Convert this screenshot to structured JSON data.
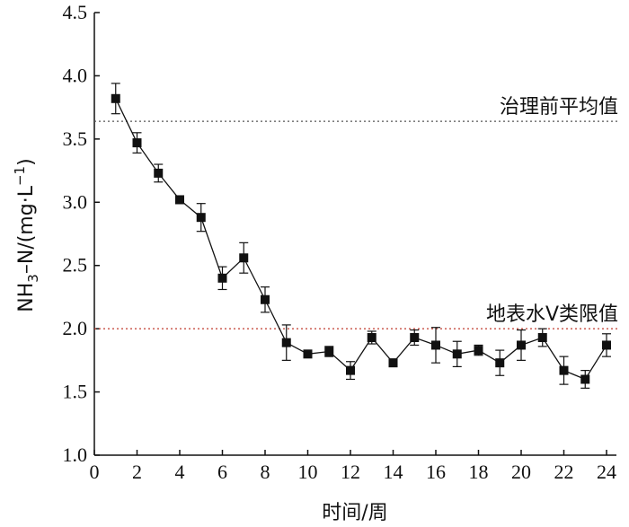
{
  "chart_data": {
    "type": "line",
    "xlabel": "时间/周",
    "ylabel_main": "NH",
    "ylabel_sub": "3",
    "ylabel_mid": "–N/(mg·L",
    "ylabel_sup": "−1",
    "ylabel_end": ")",
    "xlim": [
      0,
      24
    ],
    "ylim": [
      1.0,
      4.5
    ],
    "x_ticks": [
      0,
      2,
      4,
      6,
      8,
      10,
      12,
      14,
      16,
      18,
      20,
      22,
      24
    ],
    "y_ticks": [
      "1.0",
      "1.5",
      "2.0",
      "2.5",
      "3.0",
      "3.5",
      "4.0",
      "4.5"
    ],
    "grid": false,
    "series": [
      {
        "marker": "square",
        "color": "#111111",
        "x": [
          1,
          2,
          3,
          4,
          5,
          6,
          7,
          8,
          9,
          10,
          11,
          12,
          13,
          14,
          15,
          16,
          17,
          18,
          19,
          20,
          21,
          22,
          23,
          24
        ],
        "y": [
          3.82,
          3.47,
          3.23,
          3.02,
          2.88,
          2.4,
          2.56,
          2.23,
          1.89,
          1.8,
          1.82,
          1.67,
          1.93,
          1.73,
          1.93,
          1.87,
          1.8,
          1.83,
          1.73,
          1.87,
          1.93,
          1.67,
          1.6,
          1.87
        ],
        "error": [
          0.12,
          0.08,
          0.07,
          0.03,
          0.11,
          0.09,
          0.12,
          0.1,
          0.14,
          0.02,
          0.04,
          0.07,
          0.05,
          0.03,
          0.06,
          0.14,
          0.1,
          0.04,
          0.1,
          0.12,
          0.07,
          0.11,
          0.07,
          0.09
        ]
      }
    ],
    "reference_lines": [
      {
        "label": "治理前平均值",
        "y": 3.64,
        "color": "#555555"
      },
      {
        "label": "地表水V类限值",
        "y": 2.0,
        "color": "#c0392b"
      }
    ]
  }
}
